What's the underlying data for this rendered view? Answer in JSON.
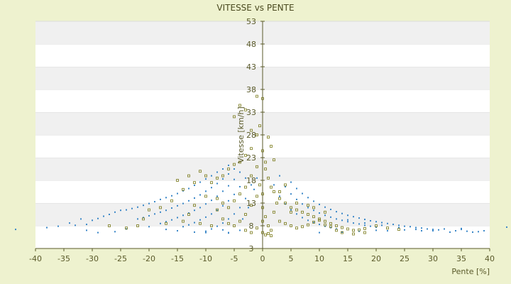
{
  "chart_data": {
    "type": "scatter",
    "title": "VITESSE vs PENTE",
    "xlabel": "Pente [%]",
    "ylabel": "Vitesse [km/h]",
    "xlim": [
      -40,
      40
    ],
    "ylim": [
      3,
      53
    ],
    "x_ticks": [
      "-40",
      "-35",
      "-30",
      "-25",
      "-20",
      "-15",
      "-10",
      "-5",
      "0",
      "5",
      "10",
      "15",
      "20",
      "25",
      "30",
      "35",
      "40"
    ],
    "y_ticks": [
      "3",
      "8",
      "13",
      "18",
      "23",
      "28",
      "33",
      "38",
      "43",
      "48",
      "53"
    ],
    "grid": "horizontal bands",
    "colors": {
      "background": "#eef2cf",
      "plot_white": "#ffffff",
      "plot_band": "#f0f0f0",
      "series_blue": "#3a87c8",
      "series_olive": "#7a7a1a",
      "axis": "#5a5a2a"
    },
    "series": [
      {
        "color": "#3a87c8",
        "values": [
          [
            -43.5,
            7.2
          ],
          [
            -34,
            8.6
          ],
          [
            -33,
            8.1
          ],
          [
            -32,
            9.5
          ],
          [
            -31,
            8.3
          ],
          [
            -30,
            9.2
          ],
          [
            -29,
            9.6
          ],
          [
            -28,
            10.1
          ],
          [
            -27,
            10.5
          ],
          [
            -26,
            11.0
          ],
          [
            -25,
            11.4
          ],
          [
            -24,
            11.5
          ],
          [
            -23,
            11.8
          ],
          [
            -22,
            12.1
          ],
          [
            -21,
            12.5
          ],
          [
            -20,
            12.9
          ],
          [
            -19,
            13.3
          ],
          [
            -18,
            13.8
          ],
          [
            -17,
            14.2
          ],
          [
            -16,
            14.6
          ],
          [
            -15,
            15.1
          ],
          [
            -14,
            15.7
          ],
          [
            -13,
            16.2
          ],
          [
            -12,
            16.9
          ],
          [
            -11,
            17.6
          ],
          [
            -10,
            18.3
          ],
          [
            -9,
            19.0
          ],
          [
            -8,
            19.8
          ],
          [
            -7,
            20.5
          ],
          [
            -6,
            21.3
          ],
          [
            -22,
            9.5
          ],
          [
            -21,
            9.8
          ],
          [
            -20,
            10.2
          ],
          [
            -19,
            10.6
          ],
          [
            -18,
            11.0
          ],
          [
            -17,
            11.4
          ],
          [
            -16,
            11.9
          ],
          [
            -15,
            12.4
          ],
          [
            -14,
            12.9
          ],
          [
            -13,
            13.5
          ],
          [
            -12,
            14.1
          ],
          [
            -11,
            14.8
          ],
          [
            -10,
            15.6
          ],
          [
            -9,
            16.4
          ],
          [
            -8,
            17.3
          ],
          [
            -7,
            18.3
          ],
          [
            -6,
            19.4
          ],
          [
            -5,
            20.5
          ],
          [
            -18,
            8.5
          ],
          [
            -17,
            8.9
          ],
          [
            -16,
            9.3
          ],
          [
            -15,
            9.8
          ],
          [
            -14,
            10.3
          ],
          [
            -13,
            10.8
          ],
          [
            -12,
            11.4
          ],
          [
            -11,
            12.0
          ],
          [
            -10,
            12.8
          ],
          [
            -9,
            13.6
          ],
          [
            -8,
            14.5
          ],
          [
            -7,
            15.6
          ],
          [
            -6,
            16.8
          ],
          [
            -5,
            18.2
          ],
          [
            -4,
            19.8
          ],
          [
            -14,
            7.8
          ],
          [
            -13,
            8.2
          ],
          [
            -12,
            8.7
          ],
          [
            -11,
            9.3
          ],
          [
            -10,
            9.9
          ],
          [
            -9,
            10.6
          ],
          [
            -8,
            11.4
          ],
          [
            -7,
            12.4
          ],
          [
            -6,
            13.5
          ],
          [
            -5,
            14.9
          ],
          [
            -4,
            16.6
          ],
          [
            -3,
            18.5
          ],
          [
            -10,
            6.8
          ],
          [
            -9,
            7.3
          ],
          [
            -8,
            7.9
          ],
          [
            -7,
            8.6
          ],
          [
            -6,
            9.5
          ],
          [
            -5,
            10.6
          ],
          [
            -4,
            12.0
          ],
          [
            -3,
            14.0
          ],
          [
            -2,
            17.0
          ],
          [
            -1,
            18.5
          ],
          [
            -1.5,
            16.0
          ],
          [
            -2.5,
            12.0
          ],
          [
            -3.5,
            9.5
          ],
          [
            -6,
            6.4
          ],
          [
            -4,
            7.0
          ],
          [
            2,
            17.0
          ],
          [
            3,
            14.5
          ],
          [
            4,
            12.8
          ],
          [
            5,
            11.5
          ],
          [
            6,
            10.6
          ],
          [
            7,
            9.8
          ],
          [
            8,
            9.2
          ],
          [
            9,
            8.7
          ],
          [
            10,
            8.3
          ],
          [
            11,
            7.9
          ],
          [
            12,
            7.6
          ],
          [
            13,
            7.3
          ],
          [
            3,
            19.0
          ],
          [
            4,
            16.6
          ],
          [
            5,
            15.0
          ],
          [
            6,
            13.8
          ],
          [
            7,
            12.8
          ],
          [
            8,
            12.0
          ],
          [
            9,
            11.4
          ],
          [
            10,
            10.8
          ],
          [
            11,
            10.3
          ],
          [
            12,
            9.9
          ],
          [
            13,
            9.5
          ],
          [
            14,
            9.2
          ],
          [
            15,
            8.9
          ],
          [
            16,
            8.6
          ],
          [
            17,
            8.4
          ],
          [
            18,
            8.1
          ],
          [
            19,
            7.9
          ],
          [
            20,
            7.7
          ],
          [
            5,
            17.6
          ],
          [
            6,
            16.2
          ],
          [
            7,
            15.1
          ],
          [
            8,
            14.2
          ],
          [
            9,
            13.4
          ],
          [
            10,
            12.7
          ],
          [
            11,
            12.1
          ],
          [
            12,
            11.6
          ],
          [
            13,
            11.1
          ],
          [
            14,
            10.7
          ],
          [
            15,
            10.3
          ],
          [
            16,
            10.0
          ],
          [
            17,
            9.7
          ],
          [
            18,
            9.4
          ],
          [
            19,
            9.1
          ],
          [
            20,
            8.9
          ],
          [
            21,
            8.7
          ],
          [
            22,
            8.5
          ],
          [
            23,
            8.3
          ],
          [
            24,
            8.1
          ],
          [
            25,
            7.9
          ],
          [
            26,
            7.8
          ],
          [
            27,
            7.6
          ],
          [
            28,
            7.5
          ],
          [
            29,
            7.3
          ],
          [
            30,
            7.2
          ],
          [
            31,
            7.1
          ],
          [
            15,
            9.3
          ],
          [
            18,
            8.6
          ],
          [
            21,
            8.1
          ],
          [
            24,
            7.6
          ],
          [
            27,
            7.2
          ],
          [
            30,
            6.9
          ],
          [
            33,
            6.6
          ],
          [
            34,
            6.9
          ],
          [
            35,
            7.2
          ],
          [
            36,
            6.8
          ],
          [
            37,
            6.6
          ],
          [
            38,
            6.7
          ],
          [
            39,
            6.9
          ],
          [
            43,
            7.7
          ],
          [
            44,
            7.1
          ],
          [
            -38,
            7.6
          ],
          [
            -36,
            7.9
          ],
          [
            -31,
            7.0
          ],
          [
            -29,
            6.5
          ],
          [
            -26,
            6.7
          ],
          [
            -24,
            7.3
          ],
          [
            -20,
            7.8
          ],
          [
            -17,
            7.2
          ],
          [
            -15,
            6.9
          ],
          [
            -12,
            6.6
          ],
          [
            -10,
            6.5
          ],
          [
            -7,
            7.1
          ],
          [
            -6,
            6.5
          ],
          [
            10,
            6.5
          ],
          [
            14,
            6.6
          ],
          [
            17,
            6.8
          ],
          [
            20,
            7.0
          ],
          [
            22,
            6.9
          ],
          [
            25,
            7.1
          ],
          [
            28,
            6.9
          ],
          [
            30,
            7.0
          ],
          [
            32,
            7.3
          ],
          [
            35,
            7.4
          ]
        ]
      },
      {
        "color": "#7a7a1a",
        "values": [
          [
            -5,
            32.0
          ],
          [
            -4,
            34.5
          ],
          [
            -3,
            33.5
          ],
          [
            -2,
            29.0
          ],
          [
            -1,
            36.5
          ],
          [
            0,
            36.0
          ],
          [
            -0.5,
            30.0
          ],
          [
            -1,
            28.0
          ],
          [
            -2,
            25.0
          ],
          [
            -3,
            23.5
          ],
          [
            -4,
            22.0
          ],
          [
            -5,
            21.5
          ],
          [
            -6,
            20.5
          ],
          [
            -7,
            19.0
          ],
          [
            -8,
            18.5
          ],
          [
            -9,
            17.5
          ],
          [
            -10,
            19.0
          ],
          [
            -11,
            20.0
          ],
          [
            -12,
            17.5
          ],
          [
            -13,
            19.0
          ],
          [
            -14,
            16.0
          ],
          [
            -15,
            18.0
          ],
          [
            -16,
            13.5
          ],
          [
            -18,
            12.0
          ],
          [
            -20,
            11.5
          ],
          [
            -21,
            9.5
          ],
          [
            -22,
            8.0
          ],
          [
            -24,
            7.5
          ],
          [
            -27,
            8.0
          ],
          [
            -10,
            14.5
          ],
          [
            -12,
            12.5
          ],
          [
            -13,
            10.5
          ],
          [
            -8,
            11.5
          ],
          [
            -7,
            9.5
          ],
          [
            -6,
            8.5
          ],
          [
            -5,
            8.0
          ],
          [
            -4,
            9.0
          ],
          [
            -3,
            10.5
          ],
          [
            -2,
            12.5
          ],
          [
            -1,
            14.5
          ],
          [
            -9,
            8.0
          ],
          [
            -11,
            8.5
          ],
          [
            -14,
            9.0
          ],
          [
            -17,
            8.5
          ],
          [
            -3,
            7.0
          ],
          [
            -2,
            6.5
          ],
          [
            -1,
            7.5
          ],
          [
            1,
            27.5
          ],
          [
            1.5,
            25.5
          ],
          [
            2,
            22.5
          ],
          [
            0.5,
            20.5
          ],
          [
            1,
            18.5
          ],
          [
            1.5,
            16.5
          ],
          [
            2,
            15.5
          ],
          [
            3,
            14.0
          ],
          [
            4,
            13.0
          ],
          [
            5,
            12.0
          ],
          [
            6,
            11.5
          ],
          [
            7,
            11.0
          ],
          [
            8,
            10.5
          ],
          [
            9,
            10.0
          ],
          [
            10,
            9.5
          ],
          [
            11,
            9.0
          ],
          [
            12,
            8.5
          ],
          [
            13,
            8.0
          ],
          [
            14,
            7.6
          ],
          [
            15,
            7.3
          ],
          [
            16,
            7.0
          ],
          [
            17,
            7.1
          ],
          [
            18,
            7.4
          ],
          [
            20,
            8.0
          ],
          [
            22,
            7.5
          ],
          [
            24,
            7.2
          ],
          [
            3,
            9.0
          ],
          [
            4,
            8.5
          ],
          [
            5,
            8.0
          ],
          [
            6,
            7.5
          ],
          [
            7,
            7.8
          ],
          [
            8,
            8.2
          ],
          [
            9,
            8.8
          ],
          [
            10,
            9.2
          ],
          [
            11,
            8.2
          ],
          [
            12,
            7.8
          ],
          [
            13,
            7.0
          ],
          [
            14,
            6.5
          ],
          [
            16,
            6.2
          ],
          [
            18,
            6.5
          ],
          [
            0,
            12.0
          ],
          [
            0.5,
            10.0
          ],
          [
            1,
            8.0
          ],
          [
            1.5,
            7.0
          ],
          [
            2,
            11.0
          ],
          [
            2.5,
            13.0
          ],
          [
            3,
            15.5
          ],
          [
            4,
            17.0
          ],
          [
            5,
            11.0
          ],
          [
            6,
            13.0
          ],
          [
            8,
            12.5
          ],
          [
            9,
            12.0
          ],
          [
            11,
            11.0
          ],
          [
            0,
            15.0
          ],
          [
            -0.5,
            17.0
          ],
          [
            0.5,
            22.0
          ],
          [
            0,
            24.5
          ],
          [
            -1,
            21.0
          ],
          [
            -2,
            19.0
          ],
          [
            -3,
            16.5
          ],
          [
            -4,
            15.0
          ],
          [
            -5,
            13.5
          ],
          [
            -6,
            12.0
          ],
          [
            -7,
            13.0
          ],
          [
            -8,
            14.0
          ],
          [
            0,
            9.0
          ],
          [
            0,
            6.5
          ],
          [
            0.5,
            6.0
          ],
          [
            1,
            6.3
          ],
          [
            1.5,
            5.8
          ]
        ]
      }
    ]
  }
}
